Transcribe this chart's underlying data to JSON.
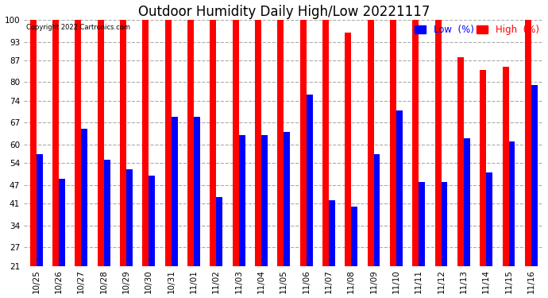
{
  "title": "Outdoor Humidity Daily High/Low 20221117",
  "copyright": "Copyright 2022 Cartronics.com",
  "legend_low": "Low  (%)",
  "legend_high": "High  (%)",
  "dates": [
    "10/25",
    "10/26",
    "10/27",
    "10/28",
    "10/29",
    "10/30",
    "10/31",
    "11/01",
    "11/02",
    "11/03",
    "11/04",
    "11/05",
    "11/06",
    "11/07",
    "11/08",
    "11/09",
    "11/10",
    "11/11",
    "11/12",
    "11/13",
    "11/14",
    "11/15",
    "11/16"
  ],
  "high_values": [
    100,
    100,
    100,
    100,
    100,
    100,
    100,
    100,
    100,
    100,
    100,
    100,
    100,
    100,
    96,
    100,
    100,
    100,
    100,
    88,
    84,
    85,
    100
  ],
  "low_values": [
    57,
    49,
    65,
    55,
    52,
    50,
    69,
    69,
    43,
    63,
    63,
    64,
    76,
    42,
    40,
    57,
    71,
    48,
    48,
    62,
    51,
    61,
    79
  ],
  "bar_width": 0.28,
  "ymin": 21,
  "ymax": 100,
  "yticks": [
    21,
    27,
    34,
    41,
    47,
    54,
    60,
    67,
    74,
    80,
    87,
    93,
    100
  ],
  "bg_color": "#ffffff",
  "plot_bg_color": "#ffffff",
  "high_color": "#ff0000",
  "low_color": "#0000ff",
  "grid_color": "#aaaaaa",
  "title_fontsize": 12,
  "tick_fontsize": 7.5,
  "legend_fontsize": 8.5
}
